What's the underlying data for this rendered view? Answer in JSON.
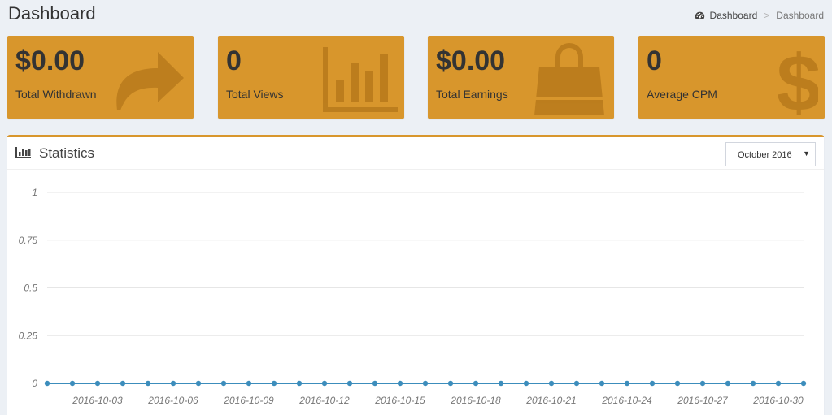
{
  "page": {
    "title": "Dashboard"
  },
  "breadcrumb": {
    "home": "Dashboard",
    "separator": ">",
    "current": "Dashboard"
  },
  "info_boxes": [
    {
      "value": "$0.00",
      "label": "Total Withdrawn",
      "icon": "share-arrow-icon"
    },
    {
      "value": "0",
      "label": "Total Views",
      "icon": "bar-chart-icon"
    },
    {
      "value": "$0.00",
      "label": "Total Earnings",
      "icon": "shopping-bag-icon"
    },
    {
      "value": "0",
      "label": "Average CPM",
      "icon": "dollar-icon"
    }
  ],
  "statistics": {
    "title": "Statistics",
    "month_selected": "October 2016"
  },
  "colors": {
    "accent": "#d8962c",
    "line": "#3c8dbc",
    "background": "#ecf0f5"
  },
  "chart_data": {
    "type": "line",
    "x": [
      "2016-10-01",
      "2016-10-02",
      "2016-10-03",
      "2016-10-04",
      "2016-10-05",
      "2016-10-06",
      "2016-10-07",
      "2016-10-08",
      "2016-10-09",
      "2016-10-10",
      "2016-10-11",
      "2016-10-12",
      "2016-10-13",
      "2016-10-14",
      "2016-10-15",
      "2016-10-16",
      "2016-10-17",
      "2016-10-18",
      "2016-10-19",
      "2016-10-20",
      "2016-10-21",
      "2016-10-22",
      "2016-10-23",
      "2016-10-24",
      "2016-10-25",
      "2016-10-26",
      "2016-10-27",
      "2016-10-28",
      "2016-10-29",
      "2016-10-30",
      "2016-10-31"
    ],
    "x_tick_labels": [
      "2016-10-03",
      "2016-10-06",
      "2016-10-09",
      "2016-10-12",
      "2016-10-15",
      "2016-10-18",
      "2016-10-21",
      "2016-10-24",
      "2016-10-27",
      "2016-10-30"
    ],
    "y_ticks": [
      "1",
      "0.75",
      "0.5",
      "0.25",
      "0"
    ],
    "ylim": [
      0,
      1
    ],
    "series": [
      {
        "values": [
          0,
          0,
          0,
          0,
          0,
          0,
          0,
          0,
          0,
          0,
          0,
          0,
          0,
          0,
          0,
          0,
          0,
          0,
          0,
          0,
          0,
          0,
          0,
          0,
          0,
          0,
          0,
          0,
          0,
          0,
          0
        ]
      }
    ],
    "grid": true
  }
}
